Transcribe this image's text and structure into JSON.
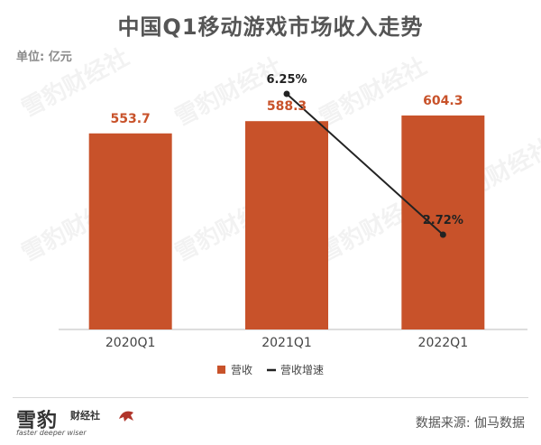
{
  "title": "中国Q1移动游戏市场收入走势",
  "unit": "单位: 亿元",
  "chart_data": {
    "type": "bar",
    "categories": [
      "2020Q1",
      "2021Q1",
      "2022Q1"
    ],
    "series": [
      {
        "name": "营收",
        "kind": "bar",
        "values": [
          553.7,
          588.3,
          604.3
        ],
        "labels": [
          "553.7",
          "588.3",
          "604.3"
        ],
        "color": "#C8522A"
      },
      {
        "name": "营收增速",
        "kind": "line",
        "values": [
          null,
          6.25,
          2.72
        ],
        "labels": [
          "",
          "6.25%",
          "2.72%"
        ],
        "color": "#222222"
      }
    ],
    "legend_position": "bottom-center",
    "grid": false
  },
  "logo": {
    "main": "雪豹",
    "sub": "财经社",
    "tagline": "faster deeper wiser",
    "watermark": "雪豹财经社"
  },
  "source": "数据来源: 伽马数据"
}
